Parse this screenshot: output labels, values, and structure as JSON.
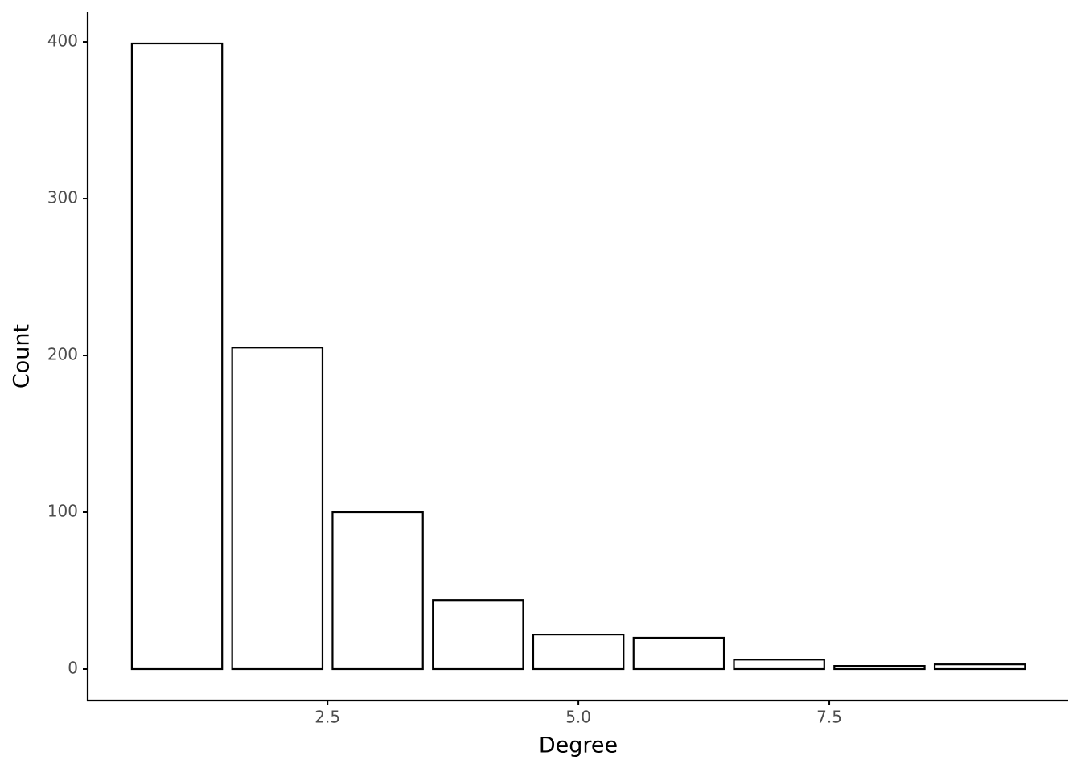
{
  "chart_data": {
    "type": "bar",
    "x_label": "Degree",
    "y_label": "Count",
    "x": [
      1,
      2,
      3,
      4,
      5,
      6,
      7,
      8,
      9
    ],
    "values": [
      399,
      205,
      100,
      44,
      22,
      20,
      6,
      2,
      3
    ],
    "fill": "#ffffff",
    "edgecolor": "#000000",
    "xlim": [
      0.11,
      9.88
    ],
    "xticks": [
      2.5,
      {
        "value": 5,
        "label": "5.0"
      },
      7.5
    ],
    "ylim": [
      -20,
      419
    ],
    "yticks": [
      0,
      100,
      200,
      300,
      400
    ]
  }
}
